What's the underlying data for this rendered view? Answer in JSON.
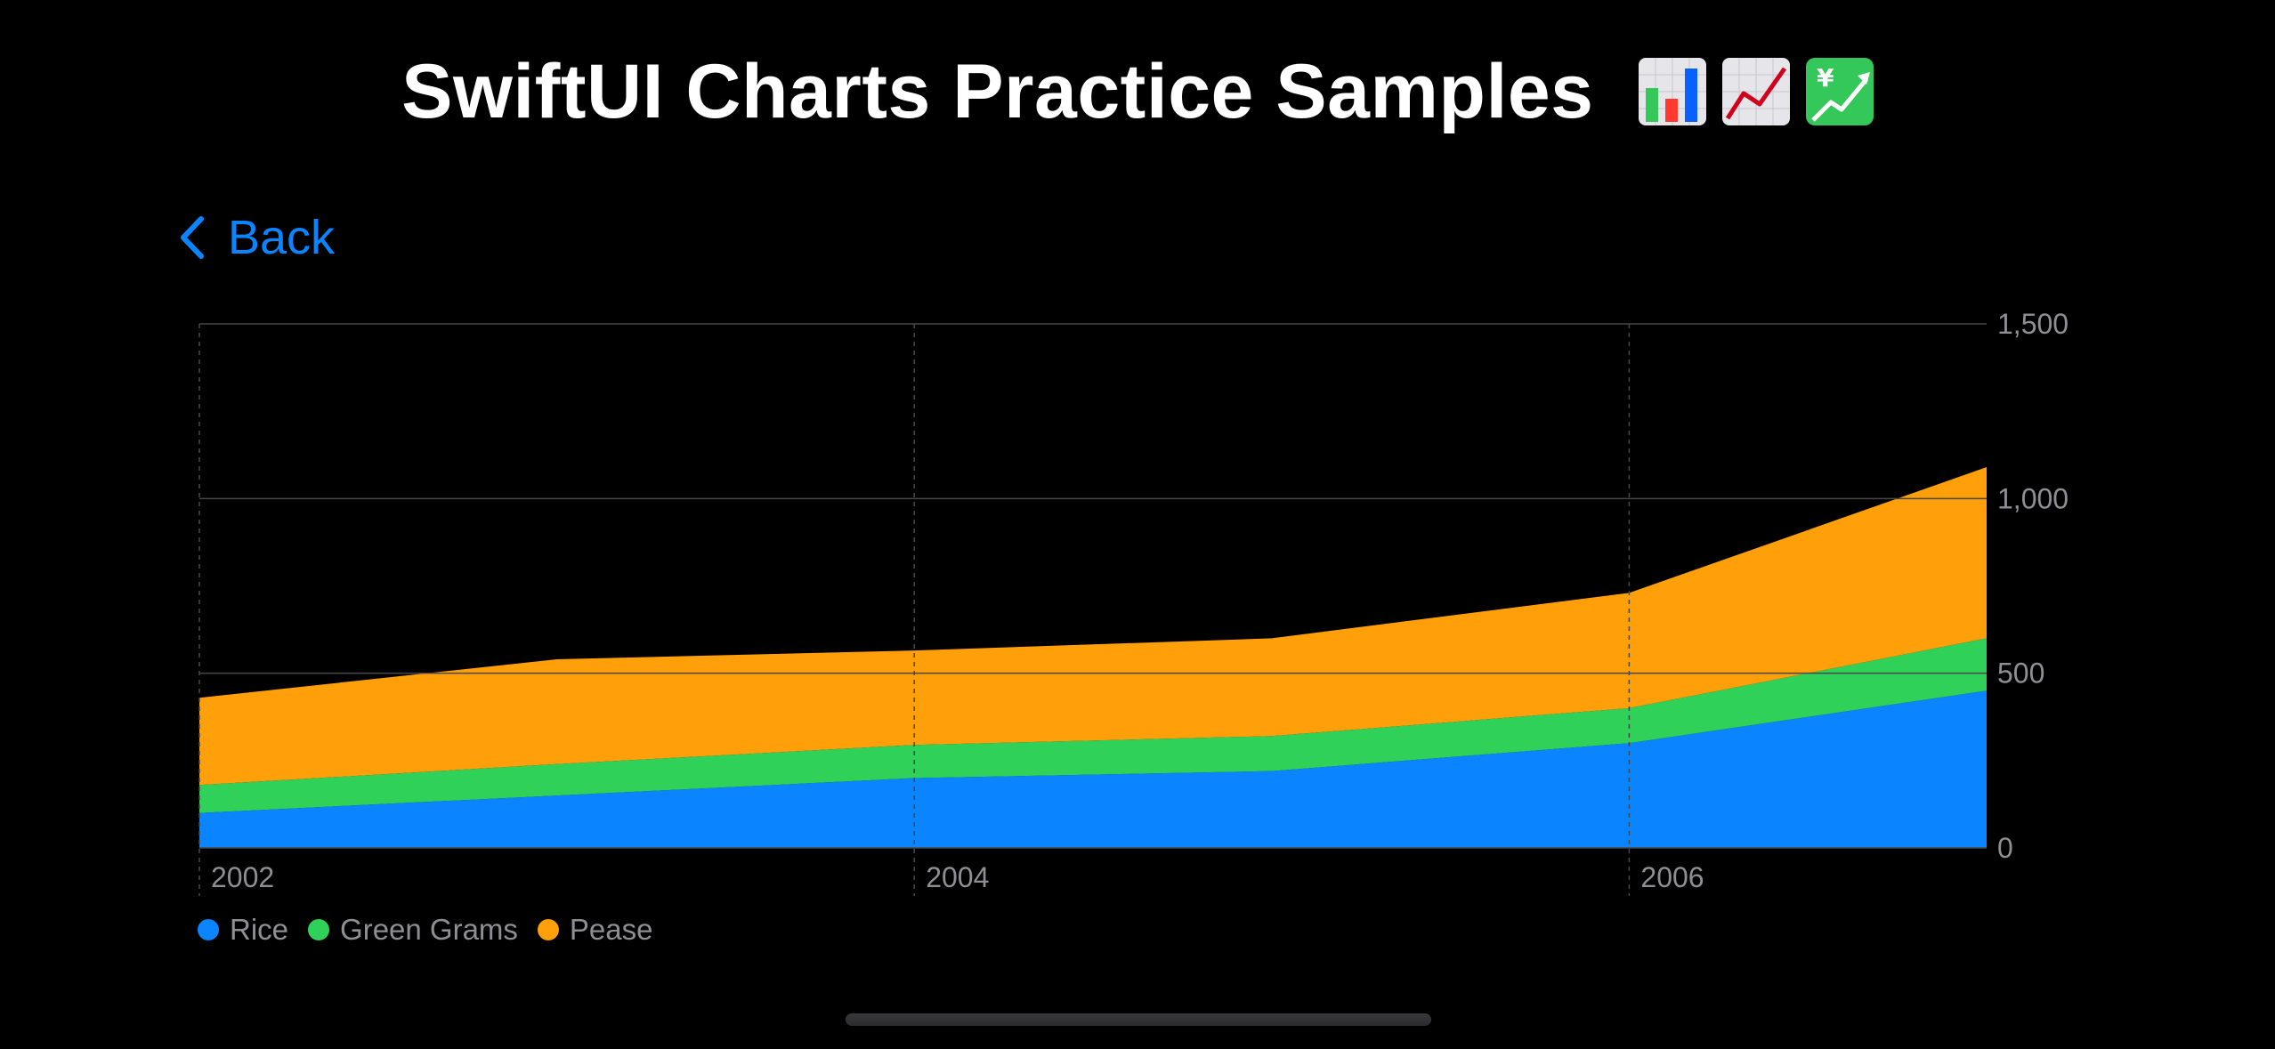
{
  "header": {
    "title": "SwiftUI Charts Practice Samples",
    "emojis": [
      "bar-chart-emoji",
      "chart-increasing-emoji",
      "chart-increasing-with-yen-emoji"
    ]
  },
  "nav": {
    "back_label": "Back"
  },
  "colors": {
    "background": "#000000",
    "accent": "#0a84ff",
    "grid": "#48484a",
    "tick_label": "#8e8e93"
  },
  "chart_data": {
    "type": "area",
    "stacked": true,
    "x": [
      2002,
      2003,
      2004,
      2005,
      2006,
      2007
    ],
    "series": [
      {
        "name": "Rice",
        "color": "#0a84ff",
        "values": [
          100,
          150,
          200,
          220,
          300,
          450
        ]
      },
      {
        "name": "Green Grams",
        "color": "#30d158",
        "values": [
          80,
          90,
          95,
          100,
          100,
          150
        ]
      },
      {
        "name": "Pease",
        "color": "#ff9f0a",
        "values": [
          250,
          300,
          270,
          280,
          330,
          490
        ]
      }
    ],
    "x_tick_labels": [
      "2002",
      "2004",
      "2006"
    ],
    "y_tick_labels": [
      "0",
      "500",
      "1,000",
      "1,500"
    ],
    "ylim": [
      0,
      1500
    ],
    "xlim": [
      2002,
      2007
    ],
    "grid": true,
    "y_axis_position": "right",
    "legend_position": "bottom-left",
    "title": "",
    "xlabel": "",
    "ylabel": ""
  }
}
